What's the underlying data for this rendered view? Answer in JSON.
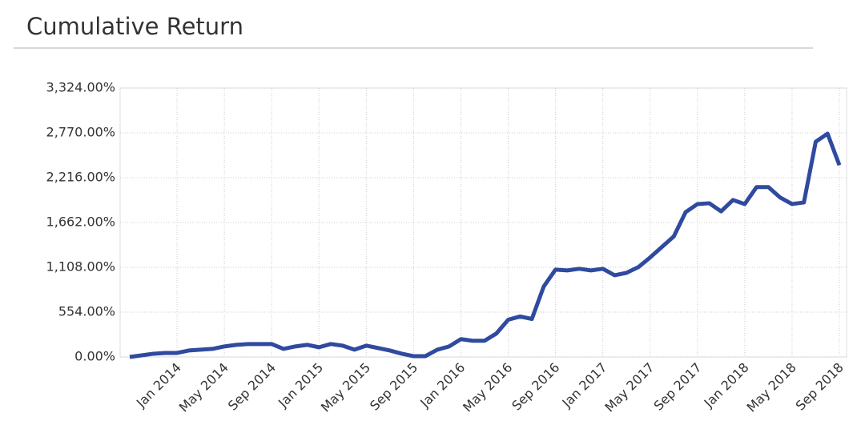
{
  "chart_data": {
    "type": "line",
    "title": "Cumulative Return",
    "categories": [
      null,
      null,
      null,
      null,
      "Jan 2014",
      null,
      null,
      null,
      "May 2014",
      null,
      null,
      null,
      "Sep 2014",
      null,
      null,
      null,
      "Jan 2015",
      null,
      null,
      null,
      "May 2015",
      null,
      null,
      null,
      "Sep 2015",
      null,
      null,
      null,
      "Jan 2016",
      null,
      null,
      null,
      "May 2016",
      null,
      null,
      null,
      "Sep 2016",
      null,
      null,
      null,
      "Jan 2017",
      null,
      null,
      null,
      "May 2017",
      null,
      null,
      null,
      "Sep 2017",
      null,
      null,
      null,
      "Jan 2018",
      null,
      null,
      null,
      "May 2018",
      null,
      null,
      null,
      "Sep 2018"
    ],
    "series": [
      {
        "name": "Cumulative Return",
        "color": "#2f4a9e",
        "values": [
          0,
          20,
          40,
          50,
          50,
          80,
          90,
          100,
          130,
          150,
          160,
          160,
          160,
          100,
          130,
          150,
          120,
          160,
          140,
          90,
          140,
          110,
          80,
          40,
          10,
          10,
          90,
          130,
          220,
          200,
          200,
          290,
          460,
          500,
          470,
          870,
          1080,
          1070,
          1090,
          1070,
          1090,
          1010,
          1040,
          1110,
          1230,
          1360,
          1490,
          1790,
          1890,
          1900,
          1800,
          1940,
          1890,
          2100,
          2100,
          1970,
          1890,
          1910,
          2660,
          2760,
          2370
        ]
      }
    ],
    "ylim": [
      0,
      3324
    ],
    "yticks": [
      {
        "value": 0,
        "label": "0.00%"
      },
      {
        "value": 554,
        "label": "554.00%"
      },
      {
        "value": 1108,
        "label": "1,108.00%"
      },
      {
        "value": 1662,
        "label": "1,662.00%"
      },
      {
        "value": 2216,
        "label": "2,216.00%"
      },
      {
        "value": 2770,
        "label": "2,770.00%"
      },
      {
        "value": 3324,
        "label": "3,324.00%"
      }
    ],
    "grid": true
  }
}
